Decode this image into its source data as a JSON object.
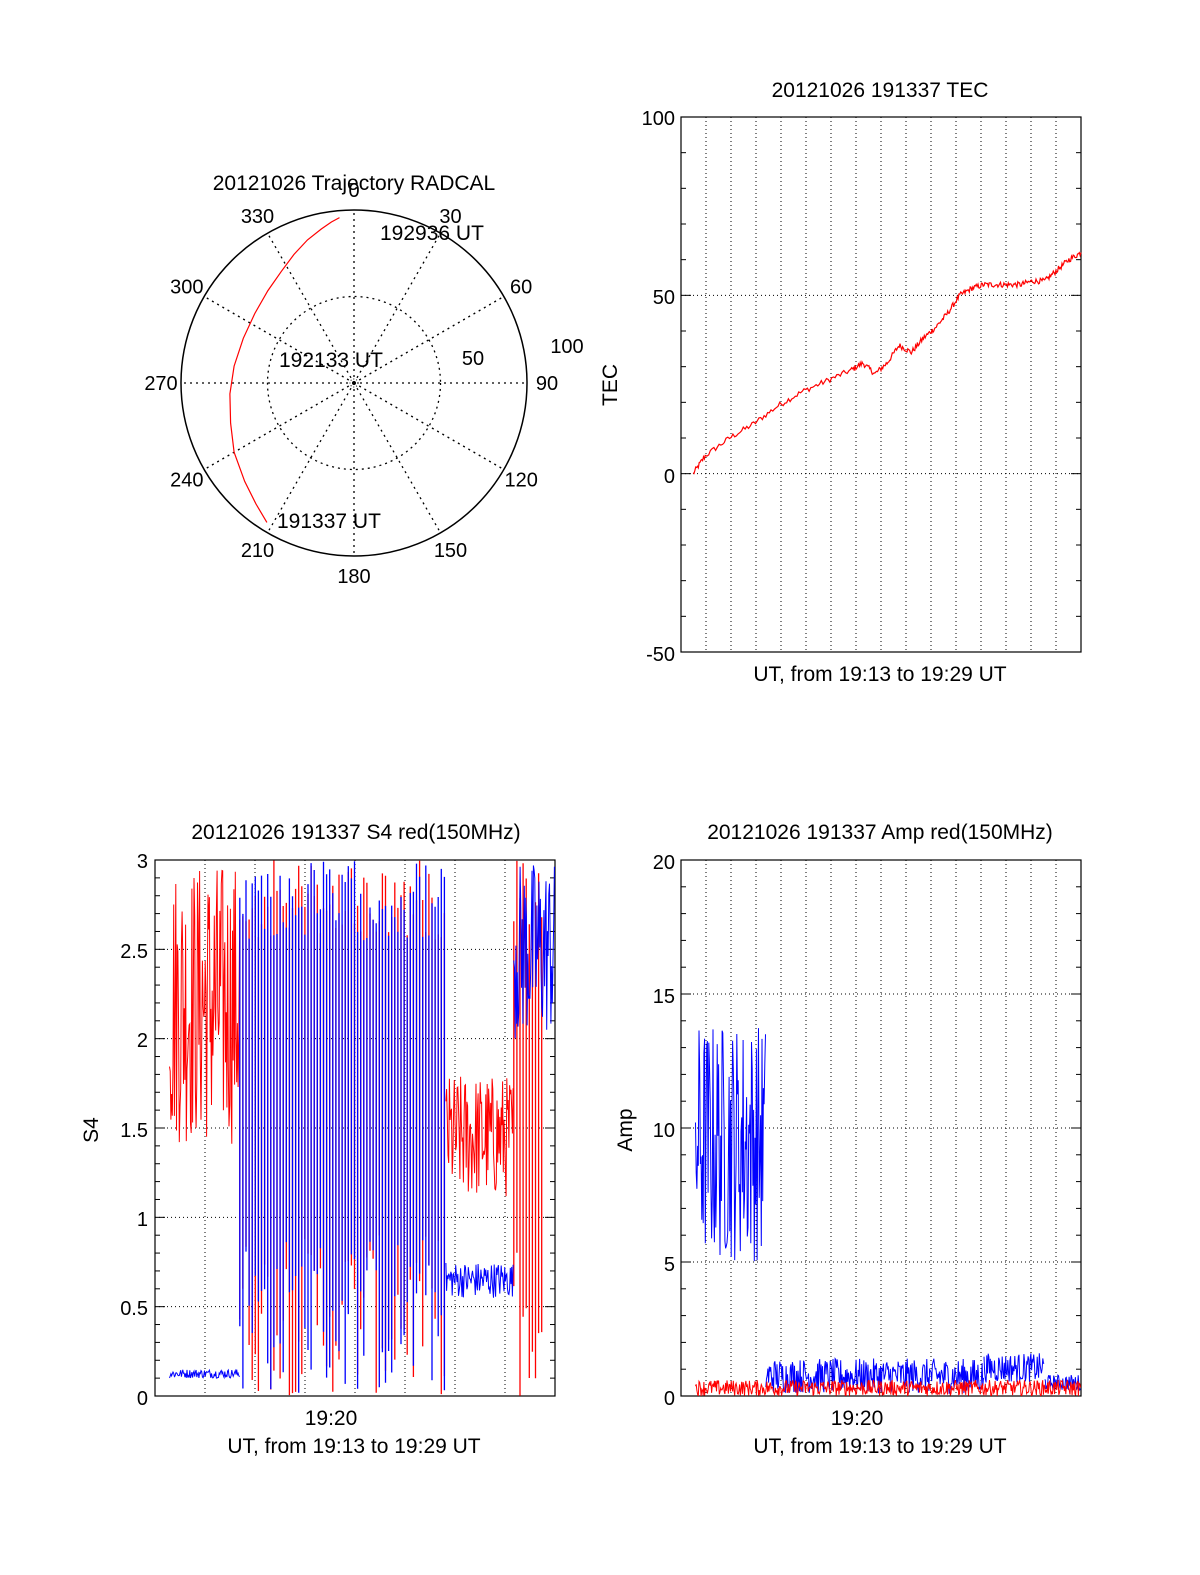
{
  "colors": {
    "red": "#ff0000",
    "blue": "#0000ff",
    "axis": "#000000",
    "grid": "#000000"
  },
  "chart_data": [
    {
      "type": "polar",
      "title": "20121026 Trajectory RADCAL",
      "angle_labels": [
        "0",
        "30",
        "60",
        "90",
        "120",
        "150",
        "180",
        "210",
        "240",
        "270",
        "300",
        "330"
      ],
      "radial_labels": [
        "50",
        "100"
      ],
      "rlim": [
        0,
        100
      ],
      "grid": true,
      "annotations": [
        {
          "text": "192936 UT",
          "point": "end"
        },
        {
          "text": "192133 UT",
          "point": "center"
        },
        {
          "text": "191337 UT",
          "point": "start"
        }
      ],
      "series": [
        {
          "color": "red",
          "azimuth_deg": [
            212,
            219,
            228,
            240,
            252,
            265,
            278,
            292,
            305,
            317,
            327,
            335,
            342,
            348,
            352,
            355
          ],
          "radius": [
            95,
            90,
            85,
            80,
            75,
            72,
            70,
            69,
            70,
            73,
            77,
            82,
            87,
            91,
            94,
            96
          ]
        }
      ]
    },
    {
      "type": "line",
      "title": "20121026 191337 TEC",
      "xlabel": "UT, from 19:13 to 19:29 UT",
      "ylabel": "TEC",
      "xlim": [
        0,
        16.5
      ],
      "ylim": [
        -50,
        100
      ],
      "yticks": [
        "100",
        "50",
        "0",
        "-50"
      ],
      "grid": true,
      "series": [
        {
          "color": "red",
          "x": [
            0.5,
            1.0,
            2.0,
            3.0,
            4.0,
            5.0,
            6.0,
            7.0,
            7.5,
            8.0,
            8.5,
            9.0,
            9.5,
            10.0,
            10.5,
            11.0,
            11.5,
            12.0,
            12.5,
            13.0,
            13.5,
            14.0,
            14.5,
            15.0,
            15.5,
            16.0,
            16.5
          ],
          "y": [
            0,
            5,
            10,
            14,
            19,
            23,
            26,
            29,
            31,
            28,
            31,
            36,
            34,
            38,
            41,
            45,
            50,
            52,
            53,
            53,
            53,
            53,
            54,
            54,
            57,
            60,
            62
          ]
        }
      ]
    },
    {
      "type": "line",
      "title": "20121026 191337 S4 red(150MHz)",
      "xlabel": "UT, from 19:13 to 19:29 UT",
      "ylabel": "S4",
      "xtick": "19:20",
      "xlim": [
        0,
        16.5
      ],
      "ylim": [
        0,
        3
      ],
      "yticks": [
        "3",
        "2.5",
        "2",
        "1.5",
        "1",
        "0.5",
        "0"
      ],
      "grid": true,
      "series": [
        {
          "color": "red",
          "segments": [
            {
              "x": [
                0.6,
                3.5
              ],
              "y_band": [
                1.4,
                3.0
              ]
            },
            {
              "x": [
                3.5,
                12.0
              ],
              "y_band": [
                0,
                3.0
              ]
            },
            {
              "x": [
                12.0,
                14.8
              ],
              "y_band": [
                1.1,
                1.8
              ]
            },
            {
              "x": [
                14.8,
                16.0
              ],
              "y_band": [
                0,
                3.0
              ]
            }
          ]
        },
        {
          "color": "blue",
          "segments": [
            {
              "x": [
                0.6,
                3.5
              ],
              "y_band": [
                0.1,
                0.15
              ]
            },
            {
              "x": [
                3.5,
                12.0
              ],
              "y_band": [
                0,
                3.0
              ]
            },
            {
              "x": [
                12.0,
                14.8
              ],
              "y_band": [
                0.55,
                0.75
              ]
            },
            {
              "x": [
                14.8,
                16.5
              ],
              "y_band": [
                2.0,
                3.0
              ]
            }
          ]
        }
      ]
    },
    {
      "type": "line",
      "title": "20121026 191337 Amp red(150MHz)",
      "xlabel": "UT, from 19:13 to 19:29 UT",
      "ylabel": "Amp",
      "xtick": "19:20",
      "xlim": [
        0,
        16.5
      ],
      "ylim": [
        0,
        20
      ],
      "yticks": [
        "20",
        "15",
        "10",
        "5",
        "0"
      ],
      "grid": true,
      "series": [
        {
          "color": "blue",
          "segments": [
            {
              "x": [
                0.6,
                3.5
              ],
              "y_band": [
                5.0,
                14.0
              ]
            },
            {
              "x": [
                3.5,
                12.5
              ],
              "y_band": [
                0.1,
                1.4
              ]
            },
            {
              "x": [
                12.5,
                15.0
              ],
              "y_band": [
                0.5,
                1.6
              ]
            },
            {
              "x": [
                15.0,
                16.5
              ],
              "y_band": [
                0.2,
                0.8
              ]
            }
          ]
        },
        {
          "color": "red",
          "segments": [
            {
              "x": [
                0.6,
                16.5
              ],
              "y_band": [
                0.0,
                0.6
              ]
            }
          ]
        }
      ]
    }
  ]
}
